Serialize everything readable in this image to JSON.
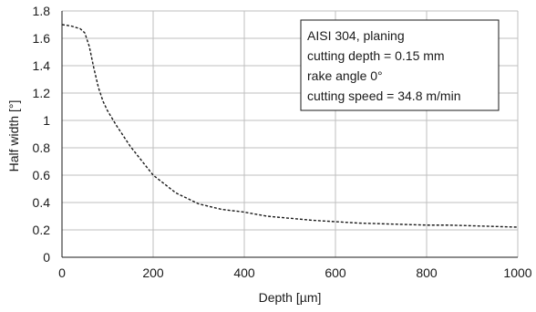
{
  "chart_data": {
    "type": "line",
    "xlabel": "Depth [µm]",
    "ylabel": "Half width [°]",
    "xlim": [
      0,
      1000
    ],
    "ylim": [
      0,
      1.8
    ],
    "x_ticks": [
      0,
      200,
      400,
      600,
      800,
      1000
    ],
    "y_ticks": [
      0,
      0.2,
      0.4,
      0.6,
      0.8,
      1,
      1.2,
      1.4,
      1.6,
      1.8
    ],
    "grid": true,
    "annotation_lines": [
      "AISI 304, planing",
      "cutting depth = 0.15 mm",
      "rake angle 0°",
      "cutting speed = 34.8 m/min"
    ],
    "series": [
      {
        "line_style": "dashed",
        "color": "#1a1a1a",
        "x": [
          0,
          20,
          40,
          50,
          60,
          70,
          80,
          90,
          100,
          120,
          150,
          200,
          250,
          300,
          350,
          400,
          450,
          500,
          550,
          600,
          650,
          700,
          750,
          800,
          850,
          900,
          950,
          1000
        ],
        "y": [
          1.7,
          1.69,
          1.67,
          1.64,
          1.54,
          1.38,
          1.24,
          1.14,
          1.07,
          0.96,
          0.81,
          0.6,
          0.47,
          0.39,
          0.35,
          0.33,
          0.3,
          0.285,
          0.27,
          0.26,
          0.25,
          0.245,
          0.24,
          0.235,
          0.235,
          0.23,
          0.225,
          0.22
        ]
      }
    ]
  }
}
